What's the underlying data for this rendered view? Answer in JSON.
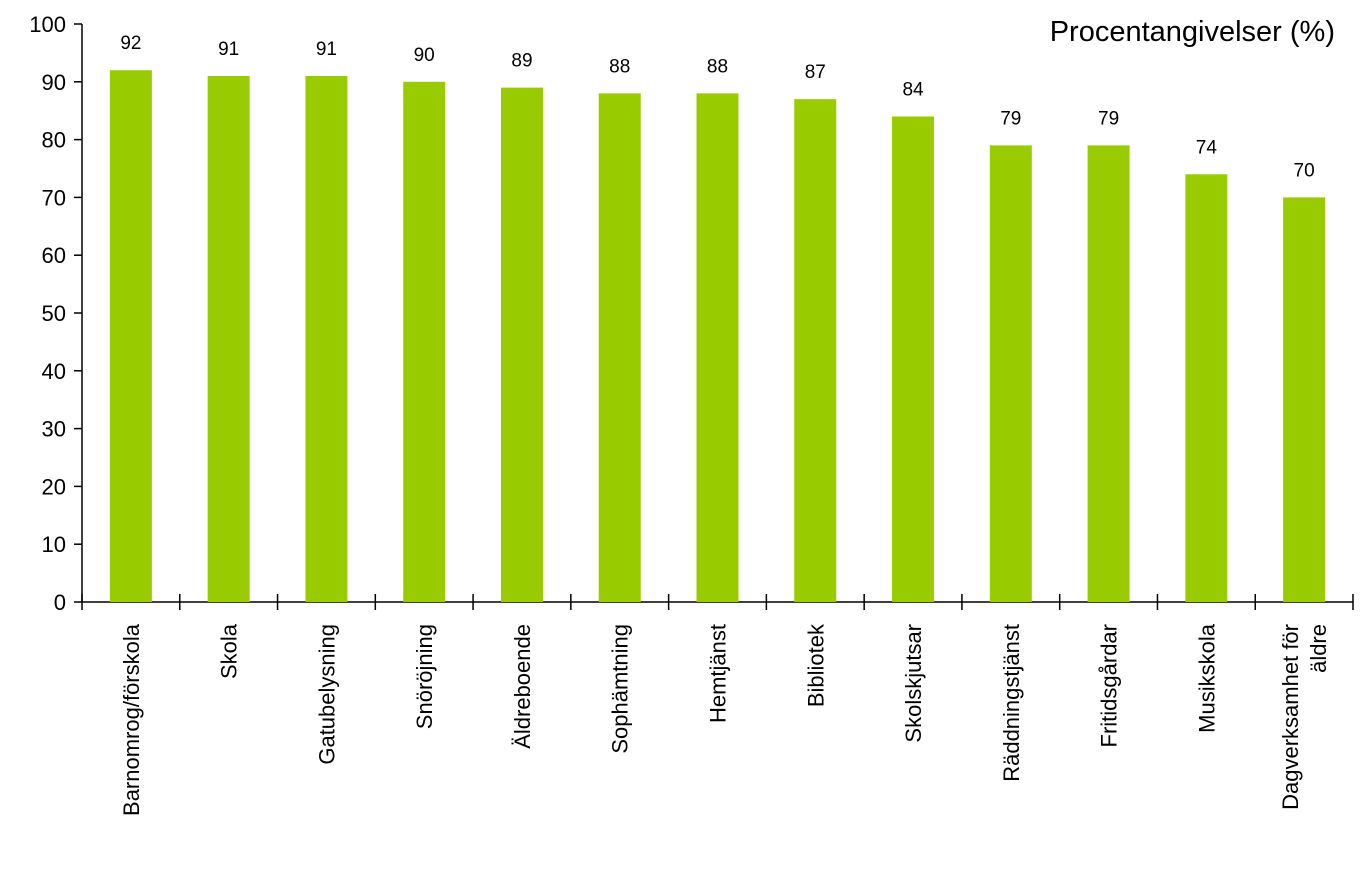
{
  "chart_data": {
    "type": "bar",
    "title": "",
    "unit_label": "Procentangivelser (%)",
    "xlabel": "",
    "ylabel": "",
    "ylim": [
      0,
      100
    ],
    "yticks": [
      0,
      10,
      20,
      30,
      40,
      50,
      60,
      70,
      80,
      90,
      100
    ],
    "grid": false,
    "legend": "none",
    "bar_color": "#99cc00",
    "categories": [
      "Barnomrog/förskola",
      "Skola",
      "Gatubelysning",
      "Snöröjning",
      "Äldreboende",
      "Sophämtning",
      "Hemtjänst",
      "Bibliotek",
      "Skolskjutsar",
      "Räddningstjänst",
      "Fritidsgårdar",
      "Musikskola",
      "Dagverksamhet för äldre"
    ],
    "category_lines": [
      [
        "Barnomrog/förskola"
      ],
      [
        "Skola"
      ],
      [
        "Gatubelysning"
      ],
      [
        "Snöröjning"
      ],
      [
        "Äldreboende"
      ],
      [
        "Sophämtning"
      ],
      [
        "Hemtjänst"
      ],
      [
        "Bibliotek"
      ],
      [
        "Skolskjutsar"
      ],
      [
        "Räddningstjänst"
      ],
      [
        "Fritidsgårdar"
      ],
      [
        "Musikskola"
      ],
      [
        "Dagverksamhet för",
        "äldre"
      ]
    ],
    "values": [
      92,
      91,
      91,
      90,
      89,
      88,
      88,
      87,
      84,
      79,
      79,
      74,
      70
    ],
    "data_labels": [
      "92",
      "91",
      "91",
      "90",
      "89",
      "88",
      "88",
      "87",
      "84",
      "79",
      "79",
      "74",
      "70"
    ]
  }
}
